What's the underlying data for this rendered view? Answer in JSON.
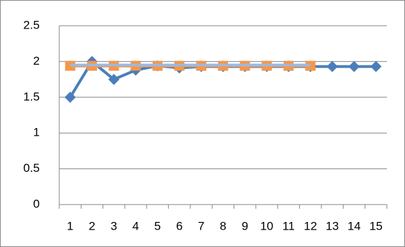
{
  "chart_data": {
    "type": "line",
    "categories": [
      "1",
      "2",
      "3",
      "4",
      "5",
      "6",
      "7",
      "8",
      "9",
      "10",
      "11",
      "12",
      "13",
      "14",
      "15"
    ],
    "series": [
      {
        "color": "#4a7ebb",
        "marker": "diamond",
        "values": [
          1.5,
          2,
          1.75,
          1.88,
          1.94,
          1.91,
          1.93,
          1.93,
          1.93,
          1.93,
          1.93,
          1.93,
          1.93,
          1.93,
          1.93
        ]
      },
      {
        "color": "#be4b48",
        "marker": "square",
        "values": [
          1.94,
          1.94,
          1.94,
          1.94,
          1.94,
          1.94,
          1.94,
          1.94,
          1.94,
          1.94,
          1.94,
          1.94,
          null,
          null,
          null
        ]
      },
      {
        "color": "#98b954",
        "marker": "triangle",
        "values": [
          1.94,
          1.94,
          1.94,
          1.94,
          1.94,
          1.94,
          1.94,
          1.94,
          1.94,
          1.94,
          1.94,
          1.94,
          null,
          null,
          null
        ]
      },
      {
        "color": "#f79646",
        "marker": "square",
        "values": [
          1.94,
          1.94,
          1.94,
          1.94,
          1.94,
          1.94,
          1.94,
          1.94,
          1.94,
          1.94,
          1.94,
          1.94,
          null,
          null,
          null
        ]
      },
      {
        "color": "#9fb8e0",
        "marker": "none",
        "values": [
          1.95,
          1.95,
          1.95,
          1.95,
          1.95,
          1.95,
          1.95,
          1.95,
          1.95,
          1.95,
          1.95,
          1.95,
          null,
          null,
          null
        ]
      }
    ],
    "ylim": [
      0,
      2.5
    ],
    "yticks": [
      0,
      0.5,
      1,
      1.5,
      2,
      2.5
    ],
    "grid": true
  }
}
